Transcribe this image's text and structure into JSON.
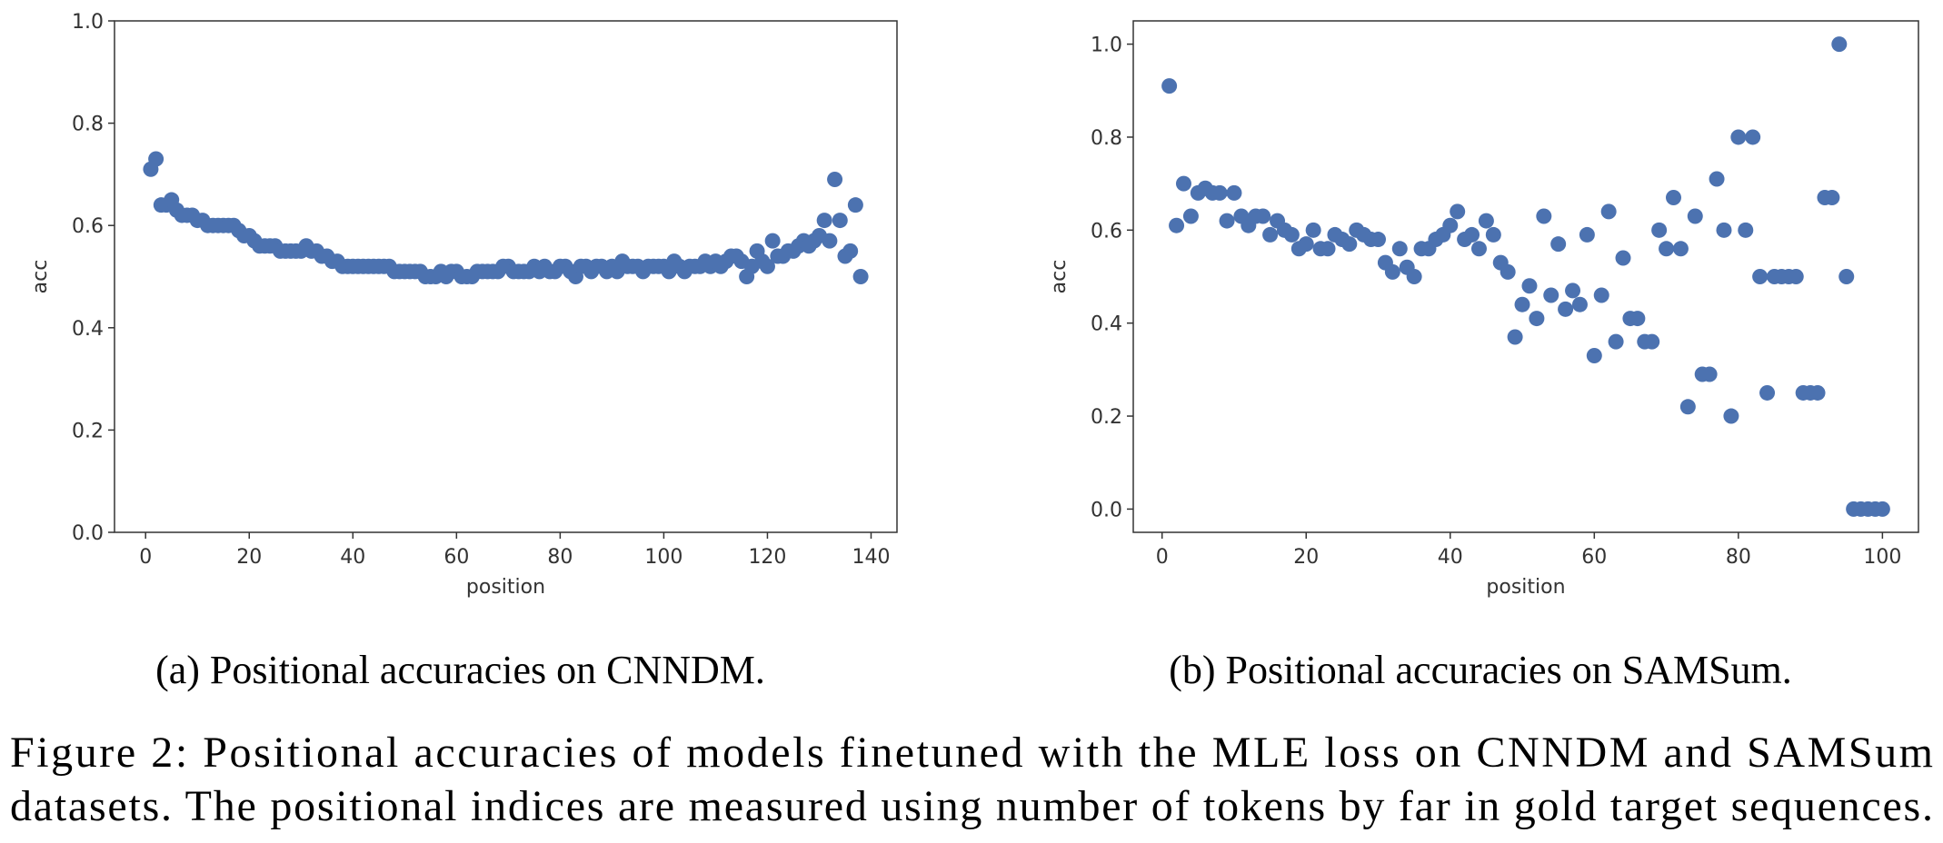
{
  "chart_data": [
    {
      "type": "scatter",
      "caption": "(a) Positional accuracies on CNNDM.",
      "xlabel": "position",
      "ylabel": "acc",
      "color": "#4c72b0",
      "x": [
        1,
        2,
        3,
        4,
        5,
        6,
        7,
        8,
        9,
        10,
        11,
        12,
        13,
        14,
        15,
        16,
        17,
        18,
        19,
        20,
        21,
        22,
        23,
        24,
        25,
        26,
        27,
        28,
        29,
        30,
        31,
        32,
        33,
        34,
        35,
        36,
        37,
        38,
        39,
        40,
        41,
        42,
        43,
        44,
        45,
        46,
        47,
        48,
        49,
        50,
        51,
        52,
        53,
        54,
        55,
        56,
        57,
        58,
        59,
        60,
        61,
        62,
        63,
        64,
        65,
        66,
        67,
        68,
        69,
        70,
        71,
        72,
        73,
        74,
        75,
        76,
        77,
        78,
        79,
        80,
        81,
        82,
        83,
        84,
        85,
        86,
        87,
        88,
        89,
        90,
        91,
        92,
        93,
        94,
        95,
        96,
        97,
        98,
        99,
        100,
        101,
        102,
        103,
        104,
        105,
        106,
        107,
        108,
        109,
        110,
        111,
        112,
        113,
        114,
        115,
        116,
        117,
        118,
        119,
        120,
        121,
        122,
        123,
        124,
        125,
        126,
        127,
        128,
        129,
        130,
        131,
        132,
        133,
        134,
        135,
        136,
        137,
        138
      ],
      "values": [
        0.71,
        0.73,
        0.64,
        0.64,
        0.65,
        0.63,
        0.62,
        0.62,
        0.62,
        0.61,
        0.61,
        0.6,
        0.6,
        0.6,
        0.6,
        0.6,
        0.6,
        0.59,
        0.58,
        0.58,
        0.57,
        0.56,
        0.56,
        0.56,
        0.56,
        0.55,
        0.55,
        0.55,
        0.55,
        0.55,
        0.56,
        0.55,
        0.55,
        0.54,
        0.54,
        0.53,
        0.53,
        0.52,
        0.52,
        0.52,
        0.52,
        0.52,
        0.52,
        0.52,
        0.52,
        0.52,
        0.52,
        0.51,
        0.51,
        0.51,
        0.51,
        0.51,
        0.51,
        0.5,
        0.5,
        0.5,
        0.51,
        0.5,
        0.51,
        0.51,
        0.5,
        0.5,
        0.5,
        0.51,
        0.51,
        0.51,
        0.51,
        0.51,
        0.52,
        0.52,
        0.51,
        0.51,
        0.51,
        0.51,
        0.52,
        0.51,
        0.52,
        0.51,
        0.51,
        0.52,
        0.52,
        0.51,
        0.5,
        0.52,
        0.52,
        0.51,
        0.52,
        0.52,
        0.51,
        0.52,
        0.51,
        0.53,
        0.52,
        0.52,
        0.52,
        0.51,
        0.52,
        0.52,
        0.52,
        0.52,
        0.51,
        0.53,
        0.52,
        0.51,
        0.52,
        0.52,
        0.52,
        0.53,
        0.52,
        0.53,
        0.52,
        0.53,
        0.54,
        0.54,
        0.53,
        0.5,
        0.52,
        0.55,
        0.53,
        0.52,
        0.57,
        0.54,
        0.54,
        0.55,
        0.55,
        0.56,
        0.57,
        0.56,
        0.57,
        0.58,
        0.61,
        0.57,
        0.69,
        0.61,
        0.54,
        0.55,
        0.64,
        0.5
      ],
      "xlim": [
        -6,
        145
      ],
      "xticks": [
        0,
        20,
        40,
        60,
        80,
        100,
        120,
        140
      ],
      "ylim": [
        0,
        1
      ],
      "yticks": [
        {
          "value": 0,
          "label": "0.0"
        },
        0.2,
        0.4,
        0.6,
        0.8,
        {
          "value": 1,
          "label": "1.0"
        }
      ]
    },
    {
      "type": "scatter",
      "caption": "(b) Positional accuracies on SAMSum.",
      "xlabel": "position",
      "ylabel": "acc",
      "color": "#4c72b0",
      "x": [
        1,
        2,
        3,
        4,
        5,
        6,
        7,
        8,
        9,
        10,
        11,
        12,
        13,
        14,
        15,
        16,
        17,
        18,
        19,
        20,
        21,
        22,
        23,
        24,
        25,
        26,
        27,
        28,
        29,
        30,
        31,
        32,
        33,
        34,
        35,
        36,
        37,
        38,
        39,
        40,
        41,
        42,
        43,
        44,
        45,
        46,
        47,
        48,
        49,
        50,
        51,
        52,
        53,
        54,
        55,
        56,
        57,
        58,
        59,
        60,
        61,
        62,
        63,
        64,
        65,
        66,
        67,
        68,
        69,
        70,
        71,
        72,
        73,
        74,
        75,
        76,
        77,
        78,
        79,
        80,
        81,
        82,
        83,
        84,
        85,
        86,
        87,
        88,
        89,
        90,
        91,
        92,
        93,
        94,
        95,
        96,
        97,
        98,
        99,
        100
      ],
      "values": [
        0.91,
        0.61,
        0.7,
        0.63,
        0.68,
        0.69,
        0.68,
        0.68,
        0.62,
        0.68,
        0.63,
        0.61,
        0.63,
        0.63,
        0.59,
        0.62,
        0.6,
        0.59,
        0.56,
        0.57,
        0.6,
        0.56,
        0.56,
        0.59,
        0.58,
        0.57,
        0.6,
        0.59,
        0.58,
        0.58,
        0.53,
        0.51,
        0.56,
        0.52,
        0.5,
        0.56,
        0.56,
        0.58,
        0.59,
        0.61,
        0.64,
        0.58,
        0.59,
        0.56,
        0.62,
        0.59,
        0.53,
        0.51,
        0.37,
        0.44,
        0.48,
        0.41,
        0.63,
        0.46,
        0.57,
        0.43,
        0.47,
        0.44,
        0.59,
        0.33,
        0.46,
        0.64,
        0.36,
        0.54,
        0.41,
        0.41,
        0.36,
        0.36,
        0.6,
        0.56,
        0.67,
        0.56,
        0.22,
        0.63,
        0.29,
        0.29,
        0.71,
        0.6,
        0.2,
        0.8,
        0.6,
        0.8,
        0.5,
        0.25,
        0.5,
        0.5,
        0.5,
        0.5,
        0.25,
        0.25,
        0.25,
        0.67,
        0.67,
        1.0,
        0.5,
        0.0,
        0.0,
        0.0,
        0.0,
        0.0
      ],
      "xlim": [
        -4,
        105
      ],
      "xticks": [
        0,
        20,
        40,
        60,
        80,
        100
      ],
      "ylim": [
        -0.05,
        1.05
      ],
      "yticks": [
        {
          "value": 0,
          "label": "0.0"
        },
        0.2,
        0.4,
        0.6,
        0.8,
        {
          "value": 1,
          "label": "1.0"
        }
      ]
    }
  ],
  "figure_caption": [
    "Figure 2: Positional accuracies of models finetuned with the MLE loss on CNNDM and SAMSum",
    "datasets. The positional indices are measured using number of tokens by far in gold target sequences."
  ]
}
